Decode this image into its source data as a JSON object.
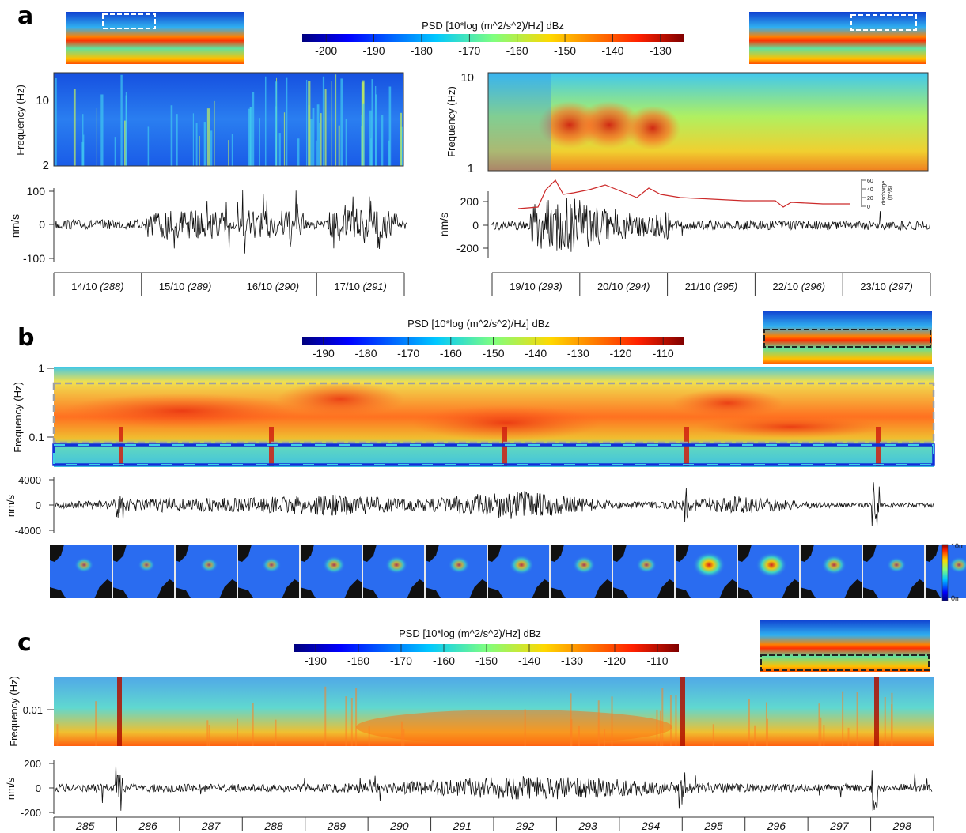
{
  "panels": [
    {
      "label": "a",
      "colorbar": {
        "title": "PSD [10*log (m^2/s^2)/Hz] dBz",
        "ticks": [
          "-200",
          "-190",
          "-180",
          "-170",
          "-160",
          "-150",
          "-140",
          "-130"
        ]
      },
      "left": {
        "ylabel": "Frequency (Hz)",
        "yticks": [
          "10",
          "2"
        ],
        "trace_ylabel": "nm/s",
        "trace_yticks": [
          "100",
          "0",
          "-100"
        ],
        "dates": [
          {
            "date": "14/10",
            "day": "(288)"
          },
          {
            "date": "15/10",
            "day": "(289)"
          },
          {
            "date": "16/10",
            "day": "(290)"
          },
          {
            "date": "17/10",
            "day": "(291)"
          }
        ]
      },
      "right": {
        "ylabel": "Frequency (Hz)",
        "yticks": [
          "10",
          "1"
        ],
        "trace_ylabel": "nm/s",
        "trace_yticks": [
          "200",
          "0",
          "-200"
        ],
        "discharge_ticks": [
          "60",
          "40",
          "20",
          "0"
        ],
        "discharge_label": "discharge",
        "discharge_unit": "(m³/s)",
        "dates": [
          {
            "date": "19/10",
            "day": "(293)"
          },
          {
            "date": "20/10",
            "day": "(294)"
          },
          {
            "date": "21/10",
            "day": "(295)"
          },
          {
            "date": "22/10",
            "day": "(296)"
          },
          {
            "date": "23/10",
            "day": "(297)"
          }
        ]
      }
    },
    {
      "label": "b",
      "colorbar": {
        "title": "PSD [10*log (m^2/s^2)/Hz] dBz",
        "ticks": [
          "-190",
          "-180",
          "-170",
          "-160",
          "-150",
          "-140",
          "-130",
          "-120",
          "-110"
        ]
      },
      "ylabel": "Frequency (Hz)",
      "yticks": [
        "1",
        "0.1"
      ],
      "trace_ylabel": "nm/s",
      "trace_yticks": [
        "4000",
        "0",
        "-4000"
      ],
      "wave_colorbar": {
        "max": "10m",
        "min": "0m"
      }
    },
    {
      "label": "c",
      "colorbar": {
        "title": "PSD [10*log (m^2/s^2)/Hz] dBz",
        "ticks": [
          "-190",
          "-180",
          "-170",
          "-160",
          "-150",
          "-140",
          "-130",
          "-120",
          "-110"
        ]
      },
      "ylabel": "Frequency (Hz)",
      "yticks": [
        "0.01"
      ],
      "trace_ylabel": "nm/s",
      "trace_yticks": [
        "200",
        "0",
        "-200"
      ],
      "days": [
        "285",
        "286",
        "287",
        "288",
        "289",
        "290",
        "291",
        "292",
        "293",
        "294",
        "295",
        "296",
        "297",
        "298"
      ]
    }
  ],
  "colors": {
    "trace": "#111111",
    "discharge": "#cc2a2a",
    "frame_blue": "#1030d8",
    "frame_cyan": "#3fd0e8",
    "frame_gray": "#a0a0a0"
  }
}
